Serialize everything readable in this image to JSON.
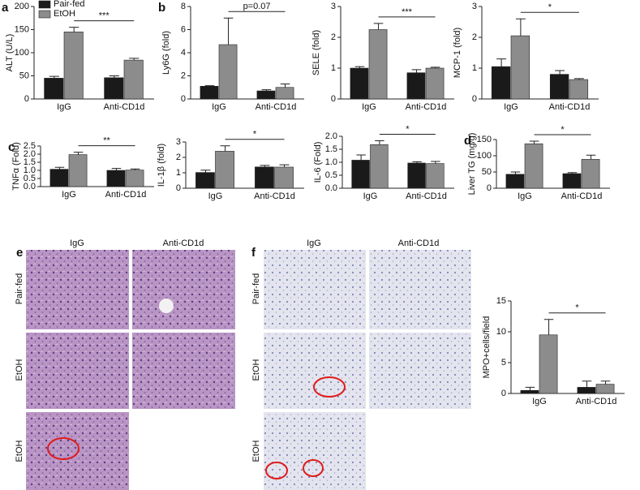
{
  "chart_data": [
    {
      "type": "bar",
      "panel": "a",
      "ylabel": "ALT (U/L)",
      "categories": [
        "IgG",
        "Anti-CD1d"
      ],
      "series": [
        {
          "name": "Pair-fed",
          "color": "#1a1a1a",
          "values": [
            45,
            46
          ],
          "errors": [
            4,
            4
          ]
        },
        {
          "name": "EtOH",
          "color": "#8c8c8c",
          "values": [
            145,
            84
          ],
          "errors": [
            10,
            4
          ]
        }
      ],
      "legend": "upper left",
      "annotation": "***",
      "ylim": [
        0,
        200
      ],
      "yticks": [
        0,
        50,
        100,
        150,
        200
      ]
    },
    {
      "type": "bar",
      "panel": "b",
      "ylabel": "Ly6G (fold)",
      "categories": [
        "IgG",
        "Anti-CD1d"
      ],
      "series": [
        {
          "color": "#1a1a1a",
          "values": [
            1.1,
            0.7
          ],
          "errors": [
            0.05,
            0.1
          ]
        },
        {
          "color": "#8c8c8c",
          "values": [
            4.7,
            1.0
          ],
          "errors": [
            2.3,
            0.3
          ]
        }
      ],
      "annotation": "p=0.07",
      "ylim": [
        0,
        8
      ],
      "yticks": [
        0,
        2,
        4,
        6,
        8
      ]
    },
    {
      "type": "bar",
      "ylabel": "SELE (fold)",
      "categories": [
        "IgG",
        "Anti-CD1d"
      ],
      "series": [
        {
          "color": "#1a1a1a",
          "values": [
            1.0,
            0.85
          ],
          "errors": [
            0.05,
            0.1
          ]
        },
        {
          "color": "#8c8c8c",
          "values": [
            2.25,
            1.0
          ],
          "errors": [
            0.2,
            0.03
          ]
        }
      ],
      "annotation": "***",
      "ylim": [
        0,
        3
      ],
      "yticks": [
        0,
        1,
        2,
        3
      ]
    },
    {
      "type": "bar",
      "ylabel": "MCP-1 (fold)",
      "categories": [
        "IgG",
        "Anti-CD1d"
      ],
      "series": [
        {
          "color": "#1a1a1a",
          "values": [
            1.05,
            0.8
          ],
          "errors": [
            0.25,
            0.12
          ]
        },
        {
          "color": "#8c8c8c",
          "values": [
            2.05,
            0.63
          ],
          "errors": [
            0.55,
            0.03
          ]
        }
      ],
      "annotation": "*",
      "ylim": [
        0,
        3
      ],
      "yticks": [
        0,
        1,
        2,
        3
      ]
    },
    {
      "type": "bar",
      "panel": "c",
      "ylabel": "TNFα (Fold)",
      "categories": [
        "IgG",
        "Anti-CD1d"
      ],
      "series": [
        {
          "color": "#1a1a1a",
          "values": [
            1.07,
            1.0
          ],
          "errors": [
            0.12,
            0.12
          ]
        },
        {
          "color": "#8c8c8c",
          "values": [
            1.97,
            1.02
          ],
          "errors": [
            0.15,
            0.07
          ]
        }
      ],
      "annotation": "**",
      "ylim": [
        0,
        2.5
      ],
      "yticks": [
        {
          "value": 0,
          "label": "0.0"
        },
        0.5,
        {
          "value": 1,
          "label": "1.0"
        },
        1.5,
        {
          "value": 2,
          "label": "2.0"
        },
        2.5
      ]
    },
    {
      "type": "bar",
      "ylabel": "IL-1β (fold)",
      "categories": [
        "IgG",
        "Anti-CD1d"
      ],
      "series": [
        {
          "color": "#1a1a1a",
          "values": [
            1.02,
            1.38
          ],
          "errors": [
            0.15,
            0.1
          ]
        },
        {
          "color": "#8c8c8c",
          "values": [
            2.4,
            1.37
          ],
          "errors": [
            0.35,
            0.15
          ]
        }
      ],
      "annotation": "*",
      "ylim": [
        0,
        3
      ],
      "yticks": [
        0,
        1,
        2,
        3
      ]
    },
    {
      "type": "bar",
      "ylabel": "IL-6 (Fold)",
      "categories": [
        "IgG",
        "Anti-CD1d"
      ],
      "series": [
        {
          "color": "#1a1a1a",
          "values": [
            1.08,
            0.97
          ],
          "errors": [
            0.2,
            0.05
          ]
        },
        {
          "color": "#8c8c8c",
          "values": [
            1.68,
            0.95
          ],
          "errors": [
            0.15,
            0.08
          ]
        }
      ],
      "annotation": "*",
      "ylim": [
        0,
        2
      ],
      "yticks": [
        {
          "value": 0,
          "label": "0.0"
        },
        0.5,
        {
          "value": 1,
          "label": "1.0"
        },
        1.5,
        {
          "value": 2,
          "label": "2.0"
        }
      ]
    },
    {
      "type": "bar",
      "panel": "d",
      "ylabel": "Liver TG (mg/g)",
      "categories": [
        "IgG",
        "Anti-CD1d"
      ],
      "series": [
        {
          "color": "#1a1a1a",
          "values": [
            43,
            45
          ],
          "errors": [
            7,
            3
          ]
        },
        {
          "color": "#8c8c8c",
          "values": [
            137,
            89
          ],
          "errors": [
            8,
            13
          ]
        }
      ],
      "annotation": "*",
      "ylim": [
        0,
        150
      ],
      "yticks": [
        0,
        50,
        100,
        150
      ]
    },
    {
      "type": "bar",
      "ylabel": "MPO+cells/field",
      "categories": [
        "IgG",
        "Anti-CD1d"
      ],
      "series": [
        {
          "color": "#1a1a1a",
          "values": [
            0.5,
            1.0
          ],
          "errors": [
            0.5,
            1.0
          ]
        },
        {
          "color": "#8c8c8c",
          "values": [
            9.5,
            1.5
          ],
          "errors": [
            2.5,
            0.5
          ]
        }
      ],
      "annotation": "*",
      "ylim": [
        0,
        15
      ],
      "yticks": [
        0,
        5,
        10,
        15
      ]
    }
  ],
  "histology": {
    "e": {
      "label": "e",
      "columns": [
        "IgG",
        "Anti-CD1d"
      ],
      "rows": [
        "Pair-fed",
        "EtOH",
        "EtOH"
      ]
    },
    "f": {
      "label": "f",
      "columns": [
        "IgG",
        "Anti-CD1d"
      ],
      "rows": [
        "Pair-fed",
        "EtOH",
        "EtOH"
      ]
    }
  }
}
